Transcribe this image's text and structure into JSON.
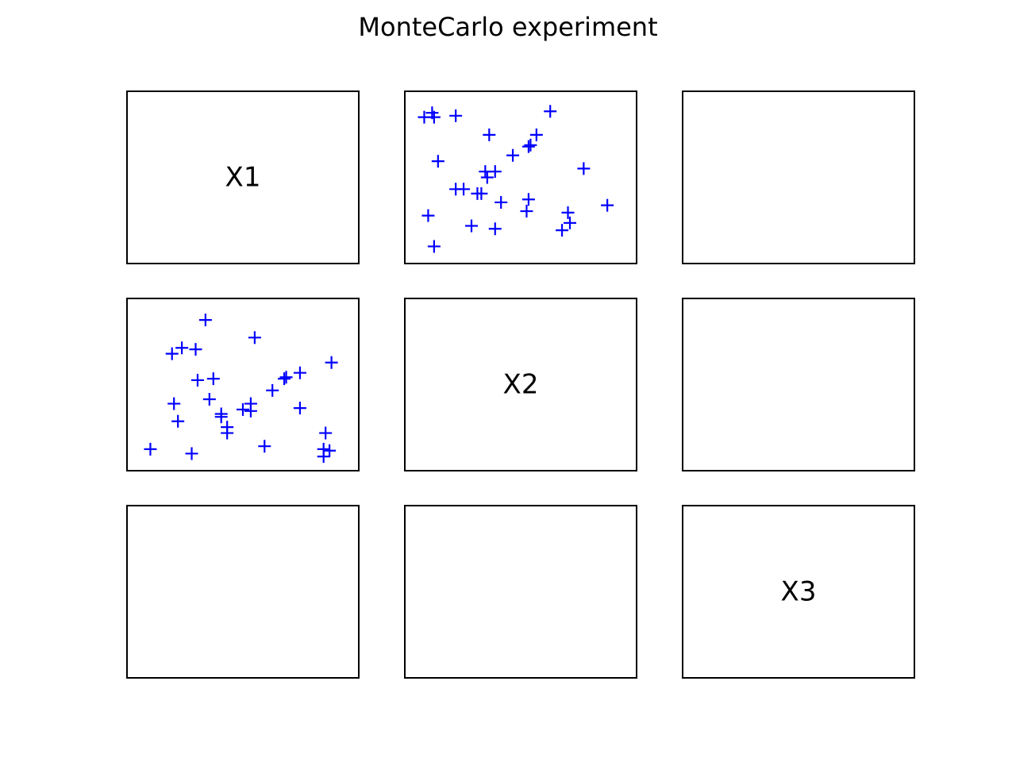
{
  "title": "MonteCarlo experiment",
  "marker_color": "#0000ff",
  "marker_symbol": "+",
  "chart_data": {
    "type": "scatter",
    "layout": "3x3 scatter matrix",
    "title": "MonteCarlo experiment",
    "variables": [
      "X1",
      "X2",
      "X3"
    ],
    "axes_visible": false,
    "grid": false,
    "xlim": [
      0,
      1
    ],
    "ylim": [
      0,
      1
    ],
    "samples": {
      "X1": [
        0.91,
        0.94,
        0.24,
        0.91,
        0.54,
        0.33,
        0.92,
        0.65,
        0.27,
        0.79,
        0.54,
        0.5,
        0.61,
        0.95,
        0.42,
        0.39,
        0.72,
        0.03,
        0.39,
        0.15,
        0.42,
        0.71,
        0.19,
        0.35,
        0.14,
        0.26,
        0.31,
        0.56,
        0.79,
        0.17
      ],
      "X2": [
        0.01,
        0.05,
        0.03,
        0.06,
        0.32,
        0.4,
        0.17,
        0.46,
        0.53,
        0.34,
        0.37,
        0.33,
        0.08,
        0.65,
        0.21,
        0.28,
        0.55,
        0.06,
        0.3,
        0.37,
        0.17,
        0.54,
        0.75,
        0.54,
        0.71,
        0.74,
        0.94,
        0.82,
        0.58,
        0.25
      ]
    },
    "panels": [
      {
        "row": 0,
        "col": 0,
        "type": "label",
        "text": "X1"
      },
      {
        "row": 0,
        "col": 1,
        "type": "scatter",
        "x": "X2",
        "y": "X1"
      },
      {
        "row": 0,
        "col": 2,
        "type": "scatter",
        "x": "X3",
        "y": "X1"
      },
      {
        "row": 1,
        "col": 0,
        "type": "scatter",
        "x": "X1",
        "y": "X2"
      },
      {
        "row": 1,
        "col": 1,
        "type": "label",
        "text": "X2"
      },
      {
        "row": 1,
        "col": 2,
        "type": "scatter",
        "x": "X3",
        "y": "X2"
      },
      {
        "row": 2,
        "col": 0,
        "type": "scatter",
        "x": "X1",
        "y": "X3"
      },
      {
        "row": 2,
        "col": 1,
        "type": "scatter",
        "x": "X2",
        "y": "X3"
      },
      {
        "row": 2,
        "col": 2,
        "type": "label",
        "text": "X3"
      }
    ]
  }
}
